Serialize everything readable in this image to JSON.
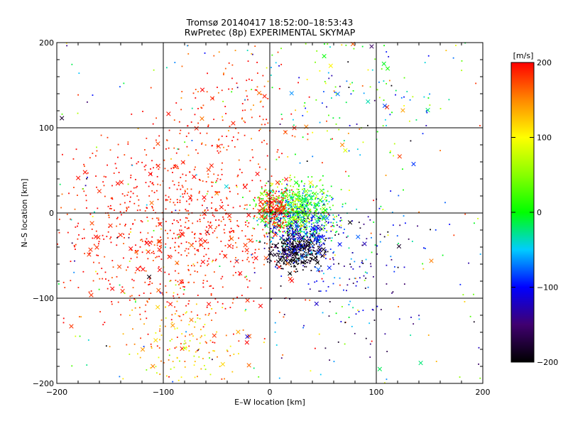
{
  "chart_data": {
    "type": "scatter",
    "title": "Tromsø 20140417 18:52:00–18:53:43",
    "subtitle": "RwPretec (8p) EXPERIMENTAL SKYMAP",
    "xlabel": "E–W location [km]",
    "ylabel": "N–S location [km]",
    "xlim": [
      -200,
      200
    ],
    "ylim": [
      -200,
      200
    ],
    "x_ticks": [
      -200,
      -100,
      0,
      100,
      200
    ],
    "y_ticks": [
      -200,
      -100,
      0,
      100,
      200
    ],
    "x_tick_labels": [
      "−200",
      "−100",
      "0",
      "100",
      "200"
    ],
    "y_tick_labels": [
      "−200",
      "−100",
      "0",
      "100",
      "200"
    ],
    "grid": true,
    "colorbar": {
      "label": "[m/s]",
      "range": [
        -200,
        200
      ],
      "ticks": [
        200,
        100,
        0,
        -100,
        -200
      ],
      "tick_labels": [
        "200",
        "100",
        "0",
        "−100",
        "−200"
      ],
      "colormap": "rainbow (black at −200, violet, blue, cyan, green, yellow, red at +200)"
    },
    "marker_types": [
      "small dot",
      "cross"
    ],
    "series": [
      {
        "name": "red / orange westerly-flow region",
        "type": "cluster",
        "center": [
          -85,
          -15
        ],
        "spread": [
          55,
          60
        ],
        "count": 900,
        "velocity_mean": 190,
        "velocity_sd": 15
      },
      {
        "name": "southern yellow-orange band",
        "type": "cluster",
        "center": [
          -85,
          -150
        ],
        "spread": [
          25,
          35
        ],
        "count": 150,
        "velocity_mean": 120,
        "velocity_sd": 35
      },
      {
        "name": "central mixed green / cyan cluster",
        "type": "cluster",
        "center": [
          25,
          5
        ],
        "spread": [
          18,
          16
        ],
        "count": 700,
        "velocity_mean": 10,
        "velocity_sd": 45
      },
      {
        "name": "central red strip",
        "type": "cluster",
        "center": [
          5,
          5
        ],
        "spread": [
          8,
          14
        ],
        "count": 200,
        "velocity_mean": 185,
        "velocity_sd": 20
      },
      {
        "name": "dark negative-velocity cluster",
        "type": "cluster",
        "center": [
          25,
          -45
        ],
        "spread": [
          12,
          10
        ],
        "count": 350,
        "velocity_mean": -195,
        "velocity_sd": 12
      },
      {
        "name": "blue / cyan south-east cluster",
        "type": "cluster",
        "center": [
          30,
          -25
        ],
        "spread": [
          16,
          14
        ],
        "count": 300,
        "velocity_mean": -100,
        "velocity_sd": 40
      },
      {
        "name": "red north-north-west stream",
        "type": "cluster",
        "center": [
          -25,
          120
        ],
        "spread": [
          30,
          40
        ],
        "count": 120,
        "velocity_mean": 180,
        "velocity_sd": 25
      },
      {
        "name": "north-east green / blue scatter",
        "type": "cluster",
        "center": [
          85,
          140
        ],
        "spread": [
          45,
          45
        ],
        "count": 130,
        "velocity_mean": -20,
        "velocity_sd": 90
      },
      {
        "name": "eastern blue / violet scatter",
        "type": "cluster",
        "center": [
          75,
          -60
        ],
        "spread": [
          40,
          45
        ],
        "count": 180,
        "velocity_mean": -120,
        "velocity_sd": 50
      },
      {
        "name": "background scatter",
        "type": "uniform",
        "count": 260,
        "velocity_range": [
          -200,
          200
        ]
      }
    ]
  }
}
